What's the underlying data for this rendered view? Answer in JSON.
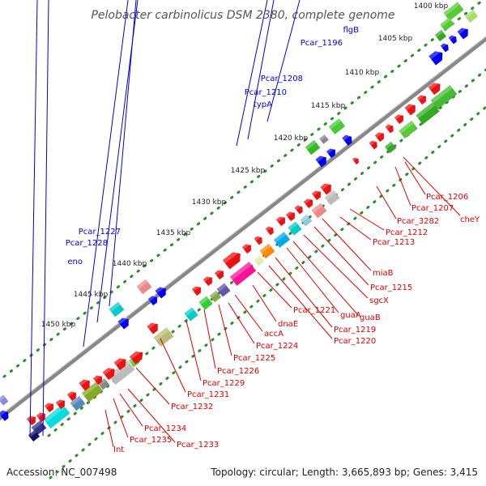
{
  "title": "Pelobacter carbinolicus DSM 2380, complete genome",
  "footer": {
    "accession": "Accession: NC_007498",
    "summary": "Topology: circular; Length: 3,665,893 bp; Genes: 3,415"
  },
  "colors": {
    "backbone": "#888888",
    "tick": "#2e8b2e",
    "forward_label": "#0000dd",
    "reverse_label": "#dd0000"
  },
  "ticks": [
    "1400 kbp",
    "1405 kbp",
    "1410 kbp",
    "1415 kbp",
    "1420 kbp",
    "1425 kbp",
    "1430 kbp",
    "1435 kbp",
    "1440 kbp",
    "1445 kbp",
    "1450 kbp"
  ],
  "forward_labels": [
    "flgB",
    "Pcar_1196",
    "Pcar_1208",
    "Pcar_1210",
    "typA",
    "Pcar_1227",
    "Pcar_1228",
    "eno"
  ],
  "reverse_labels": [
    "Pcar_1206",
    "Pcar_1207",
    "cheY",
    "Pcar_3282",
    "Pcar_1212",
    "Pcar_1213",
    "miaB",
    "Pcar_1215",
    "sgcX",
    "guaA",
    "guaB",
    "Pcar_1219",
    "Pcar_1220",
    "Pcar_1221",
    "dnaE",
    "accA",
    "Pcar_1224",
    "Pcar_1225",
    "Pcar_1226",
    "Pcar_1229",
    "Pcar_1231",
    "Pcar_1232",
    "Pcar_1234",
    "Pcar_1235",
    "Pcar_1233",
    "Int"
  ]
}
